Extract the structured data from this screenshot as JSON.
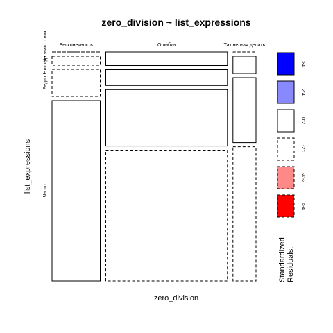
{
  "chart_data": {
    "type": "mosaic",
    "title": "zero_division ~ list_expressions",
    "xlabel": "zero_division",
    "ylabel": "list_expressions",
    "x_categories": [
      "Бесконечность",
      "Ошибка",
      "Так нельзя делать"
    ],
    "x_proportions": [
      0.23,
      0.58,
      0.11
    ],
    "y_categories": [
      "Часто",
      "Редко",
      "Никогда",
      "Не знаю о них"
    ],
    "cells": [
      {
        "x": "Бесконечность",
        "y": "Часто",
        "proportion": 0.8,
        "residual_sign": "positive"
      },
      {
        "x": "Бесконечность",
        "y": "Редко",
        "proportion": 0.12,
        "residual_sign": "negative"
      },
      {
        "x": "Бесконечность",
        "y": "Никогда",
        "proportion": 0.04,
        "residual_sign": "negative"
      },
      {
        "x": "Бесконечность",
        "y": "Не знаю о них",
        "proportion": 0.0,
        "residual_sign": "negative"
      },
      {
        "x": "Ошибка",
        "y": "Часто",
        "proportion": 0.58,
        "residual_sign": "negative"
      },
      {
        "x": "Ошибка",
        "y": "Редко",
        "proportion": 0.25,
        "residual_sign": "positive"
      },
      {
        "x": "Ошибка",
        "y": "Никогда",
        "proportion": 0.07,
        "residual_sign": "positive"
      },
      {
        "x": "Ошибка",
        "y": "Не знаю о них",
        "proportion": 0.06,
        "residual_sign": "positive"
      },
      {
        "x": "Так нельзя делать",
        "y": "Часто",
        "proportion": 0.62,
        "residual_sign": "negative"
      },
      {
        "x": "Так нельзя делать",
        "y": "Редко",
        "proportion": 0.3,
        "residual_sign": "positive"
      },
      {
        "x": "Так нельзя делать",
        "y": "Никогда",
        "proportion": 0.08,
        "residual_sign": "positive"
      },
      {
        "x": "Так нельзя делать",
        "y": "Не знаю о них",
        "proportion": 0.0,
        "residual_sign": "negative"
      }
    ],
    "y_tick_labels": [
      {
        "text": "Часто",
        "category": "Часто"
      },
      {
        "text": "Редко",
        "category": "Редко"
      },
      {
        "text": "Никогда",
        "category": "Никогда"
      },
      {
        "text": "Не знаю о них",
        "category": "Не знаю о них"
      }
    ],
    "legend": {
      "title": "Standardized\nResiduals:",
      "title_lines": [
        "Standardized",
        "Residuals:"
      ],
      "placement": "right",
      "entries": [
        {
          "label": ">4",
          "fill": "#0000ff",
          "border": "solid"
        },
        {
          "label": "2:4",
          "fill": "#8888ff",
          "border": "solid"
        },
        {
          "label": "0:2",
          "fill": "#ffffff",
          "border": "solid"
        },
        {
          "label": "-2:0",
          "fill": "#ffffff",
          "border": "dashed"
        },
        {
          "label": "-4:-2",
          "fill": "#ff8888",
          "border": "dashed"
        },
        {
          "label": "<-4",
          "fill": "#ff0000",
          "border": "dashed"
        }
      ]
    }
  }
}
